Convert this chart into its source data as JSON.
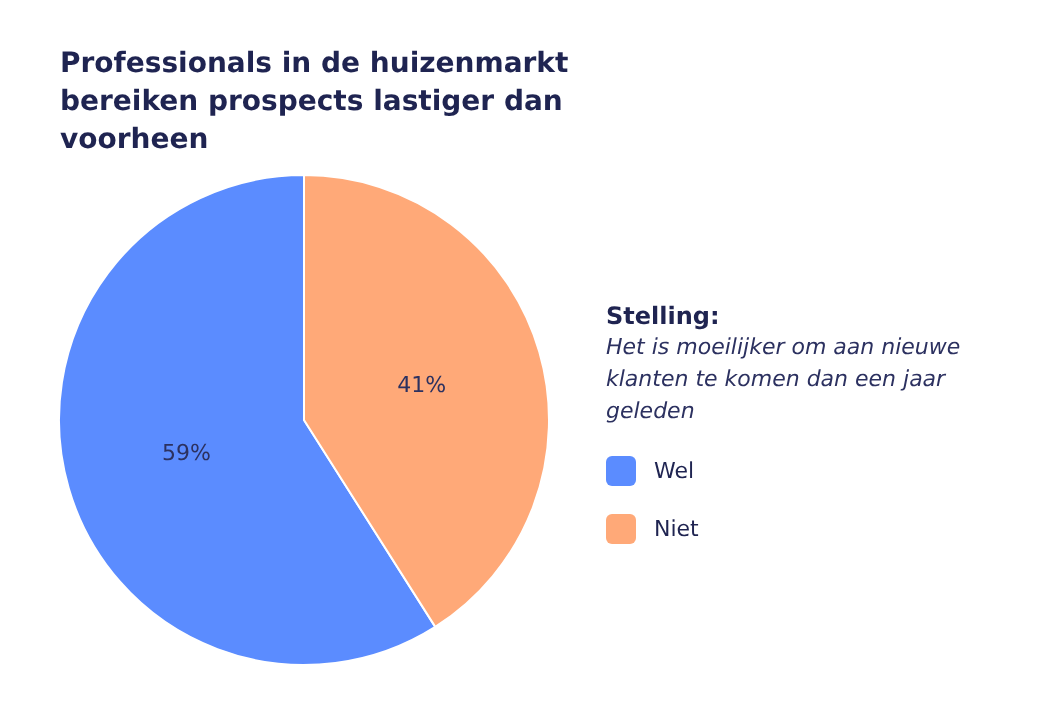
{
  "chart_data": {
    "type": "pie",
    "title": "Professionals in de huizenmarkt bereiken prospects lastiger dan voorheen",
    "legend_title": "Stelling:",
    "subtitle": "Het is moeilijker om aan nieuwe klanten te komen dan een jaar geleden",
    "categories": [
      "Wel",
      "Niet"
    ],
    "values": [
      59,
      41
    ],
    "colors": [
      "#5b8cff",
      "#ffa978"
    ],
    "value_labels": [
      "59%",
      "41%"
    ],
    "legend": "right"
  }
}
